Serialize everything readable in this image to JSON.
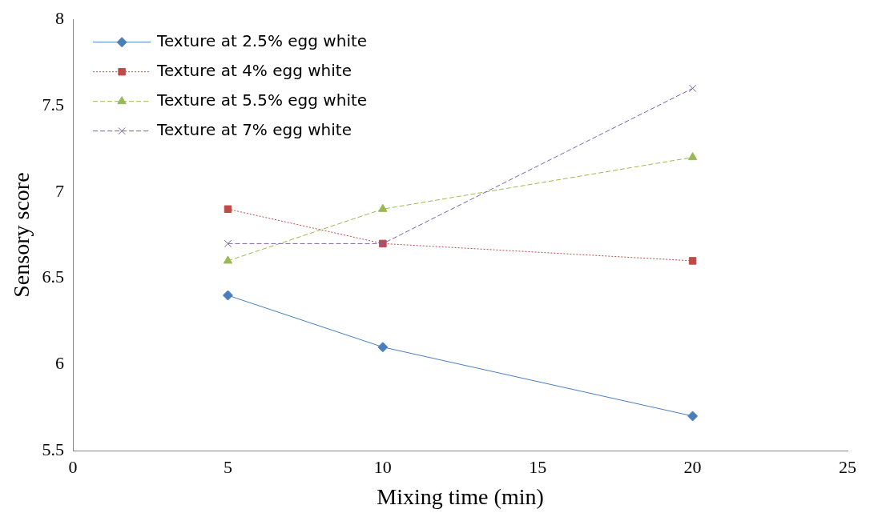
{
  "chart_data": {
    "type": "line",
    "xlabel": "Mixing time (min)",
    "ylabel": "Sensory score",
    "x": [
      5,
      10,
      20
    ],
    "xlim": [
      0,
      25
    ],
    "xticks": [
      0,
      5,
      10,
      15,
      20,
      25
    ],
    "ylim": [
      5.5,
      8
    ],
    "yticks": [
      5.5,
      6,
      6.5,
      7,
      7.5,
      8
    ],
    "grid": false,
    "legend": "top left",
    "series": [
      {
        "name": "Texture at 2.5% egg white",
        "color": "#4a7ebb",
        "values": [
          6.4,
          6.1,
          5.7
        ],
        "marker": "diamond",
        "line_style": "solid"
      },
      {
        "name": "Texture at 4% egg white",
        "color": "#be4b48",
        "values": [
          6.9,
          6.7,
          6.6
        ],
        "marker": "square",
        "line_style": "dotted"
      },
      {
        "name": "Texture at 5.5% egg white",
        "color": "#98b954",
        "values": [
          6.6,
          6.9,
          7.2
        ],
        "marker": "triangle",
        "line_style": "dashed"
      },
      {
        "name": "Texture at 7% egg white",
        "color": "#7d60a0",
        "values": [
          6.7,
          6.7,
          7.6
        ],
        "marker": "cross",
        "line_style": "dashed"
      }
    ]
  }
}
